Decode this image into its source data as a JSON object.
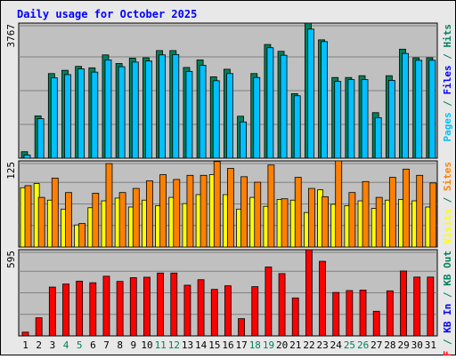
{
  "title": "Daily usage for October 2025",
  "colors": {
    "background": "#e8e8e8",
    "plot": "#c0c0c0",
    "title": "#0000ff",
    "hits": "#00805c",
    "files": "#0000ff",
    "pages": "#00c0ff",
    "visits": "#ffff00",
    "sites": "#ff8000",
    "kb_in": "#0000ff",
    "kb_out": "#00805c",
    "kb_f": "#ff0000"
  },
  "chart_data": [
    {
      "type": "bar",
      "title": "Daily usage for October 2025",
      "max_label": "3767",
      "legend": [
        {
          "text": "Pages",
          "color": "#00c0ff"
        },
        {
          "text": " / ",
          "color": "#00805c"
        },
        {
          "text": "Files",
          "color": "#0000ff"
        },
        {
          "text": " / ",
          "color": "#00805c"
        },
        {
          "text": "Hits",
          "color": "#00805c"
        }
      ],
      "categories": [
        "1",
        "2",
        "3",
        "4",
        "5",
        "6",
        "7",
        "8",
        "9",
        "10",
        "11",
        "12",
        "13",
        "14",
        "15",
        "16",
        "17",
        "18",
        "19",
        "20",
        "21",
        "22",
        "23",
        "24",
        "25",
        "26",
        "27",
        "28",
        "29",
        "30",
        "31"
      ],
      "weekend_days": [
        "4",
        "5",
        "11",
        "12",
        "18",
        "19",
        "25",
        "26"
      ],
      "ylim": [
        0,
        3767
      ],
      "series": [
        {
          "name": "Hits",
          "values": [
            180,
            1180,
            2360,
            2450,
            2560,
            2520,
            2880,
            2640,
            2790,
            2800,
            3000,
            3000,
            2530,
            2740,
            2270,
            2480,
            1170,
            2360,
            3170,
            2980,
            1800,
            3767,
            3300,
            2250,
            2250,
            2300,
            1270,
            2300,
            3040,
            2800,
            2800
          ]
        },
        {
          "name": "Files",
          "values": [
            140,
            1150,
            2290,
            2380,
            2540,
            2450,
            2790,
            2600,
            2730,
            2760,
            2930,
            2940,
            2470,
            2640,
            2210,
            2410,
            1060,
            2300,
            3130,
            2920,
            1790,
            3650,
            3300,
            2190,
            2240,
            2240,
            1180,
            2220,
            2970,
            2780,
            2780
          ]
        }
      ]
    },
    {
      "type": "bar",
      "max_label": "125",
      "legend": [
        {
          "text": "Visits",
          "color": "#ffff00"
        },
        {
          "text": " / ",
          "color": "#00805c"
        },
        {
          "text": "Sites",
          "color": "#ff8000"
        }
      ],
      "categories": [
        "1",
        "2",
        "3",
        "4",
        "5",
        "6",
        "7",
        "8",
        "9",
        "10",
        "11",
        "12",
        "13",
        "14",
        "15",
        "16",
        "17",
        "18",
        "19",
        "20",
        "21",
        "22",
        "23",
        "24",
        "25",
        "26",
        "27",
        "28",
        "29",
        "30",
        "31"
      ],
      "ylim": [
        0,
        125
      ],
      "series": [
        {
          "name": "Visits",
          "values": [
            86,
            92,
            68,
            55,
            32,
            57,
            67,
            71,
            58,
            68,
            60,
            72,
            63,
            76,
            105,
            76,
            55,
            72,
            59,
            69,
            68,
            50,
            83,
            62,
            60,
            67,
            56,
            68,
            69,
            67,
            58
          ]
        },
        {
          "name": "Sites",
          "values": [
            89,
            72,
            100,
            79,
            34,
            78,
            121,
            79,
            85,
            96,
            105,
            98,
            104,
            104,
            124,
            114,
            102,
            94,
            119,
            70,
            101,
            85,
            73,
            125,
            79,
            95,
            72,
            101,
            113,
            104,
            93
          ]
        }
      ]
    },
    {
      "type": "bar",
      "max_label": "595",
      "legend": [
        {
          "text": "KB F",
          "color": "#ff0000"
        },
        {
          "text": " / ",
          "color": "#00805c"
        },
        {
          "text": "KB In",
          "color": "#0000ff"
        },
        {
          "text": " / ",
          "color": "#00805c"
        },
        {
          "text": "KB Out",
          "color": "#00805c"
        }
      ],
      "categories": [
        "1",
        "2",
        "3",
        "4",
        "5",
        "6",
        "7",
        "8",
        "9",
        "10",
        "11",
        "12",
        "13",
        "14",
        "15",
        "16",
        "17",
        "18",
        "19",
        "20",
        "21",
        "22",
        "23",
        "24",
        "25",
        "26",
        "27",
        "28",
        "29",
        "30",
        "31"
      ],
      "ylim": [
        0,
        595
      ],
      "series": [
        {
          "name": "KB F",
          "values": [
            26,
            125,
            337,
            358,
            378,
            367,
            412,
            376,
            402,
            405,
            434,
            434,
            350,
            388,
            321,
            346,
            119,
            340,
            476,
            430,
            262,
            595,
            515,
            300,
            313,
            316,
            170,
            311,
            448,
            406,
            406
          ]
        }
      ]
    }
  ]
}
